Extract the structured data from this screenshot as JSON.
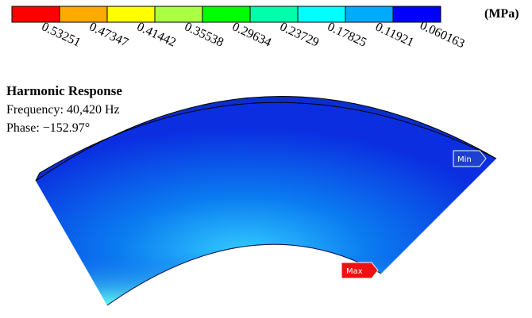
{
  "legend": {
    "unit": "(MPa)",
    "labels": [
      "0.53251",
      "0.47347",
      "0.41442",
      "0.35538",
      "0.29634",
      "0.23729",
      "0.17825",
      "0.11921",
      "0.060163"
    ]
  },
  "info": {
    "title": "Harmonic Response",
    "frequency": "Frequency: 40,420 Hz",
    "phase": "Phase: −152.97°"
  },
  "probes": {
    "min": "Min",
    "max": "Max"
  }
}
